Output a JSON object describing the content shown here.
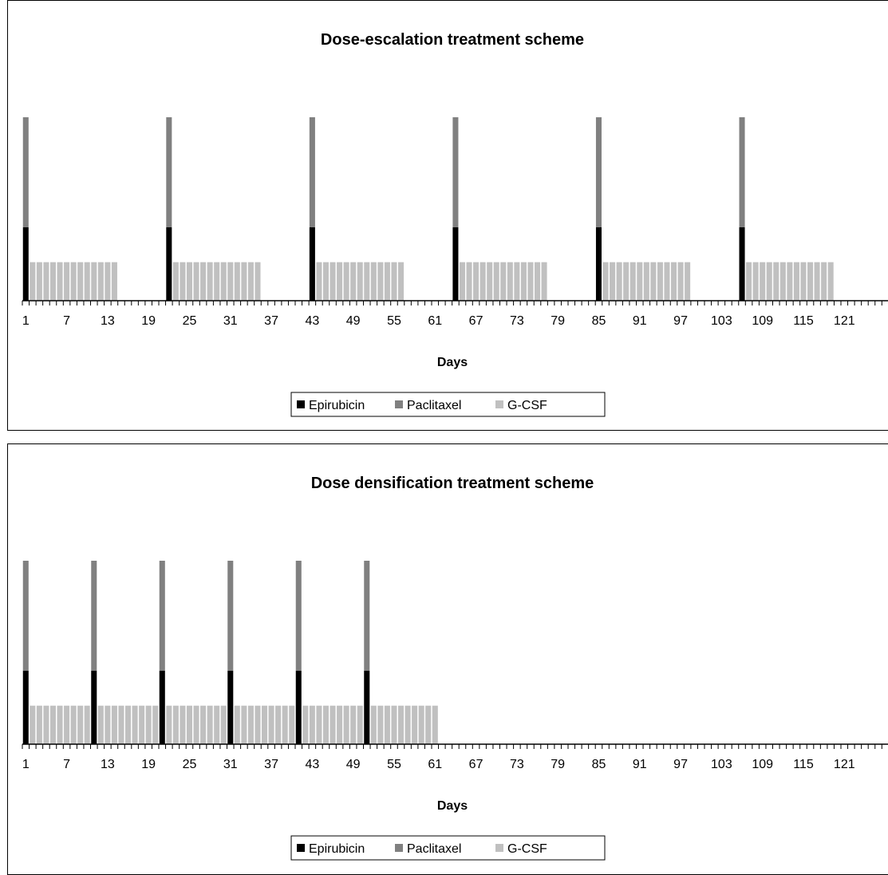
{
  "chart_data": [
    {
      "type": "bar",
      "subtype": "stacked",
      "title": "Dose-escalation treatment scheme",
      "xlabel": "Days",
      "ylabel": "",
      "x_range": [
        1,
        127
      ],
      "x_ticks": [
        1,
        7,
        13,
        19,
        25,
        31,
        37,
        43,
        49,
        55,
        61,
        67,
        73,
        79,
        85,
        91,
        97,
        103,
        109,
        115,
        121
      ],
      "ylim": [
        0,
        1
      ],
      "legend_position": "bottom",
      "series": [
        {
          "name": "Epirubicin",
          "color": "#000000",
          "days": [
            1,
            22,
            43,
            64,
            85,
            106
          ],
          "value": 0.4
        },
        {
          "name": "Paclitaxel",
          "color": "#808080",
          "days": [
            1,
            22,
            43,
            64,
            85,
            106
          ],
          "value": 0.6
        },
        {
          "name": "G-CSF",
          "color": "#c0c0c0",
          "days": [
            2,
            3,
            4,
            5,
            6,
            7,
            8,
            9,
            10,
            11,
            12,
            13,
            14,
            23,
            24,
            25,
            26,
            27,
            28,
            29,
            30,
            31,
            32,
            33,
            34,
            35,
            44,
            45,
            46,
            47,
            48,
            49,
            50,
            51,
            52,
            53,
            54,
            55,
            56,
            65,
            66,
            67,
            68,
            69,
            70,
            71,
            72,
            73,
            74,
            75,
            76,
            77,
            86,
            87,
            88,
            89,
            90,
            91,
            92,
            93,
            94,
            95,
            96,
            97,
            98,
            107,
            108,
            109,
            110,
            111,
            112,
            113,
            114,
            115,
            116,
            117,
            118,
            119
          ],
          "value": 0.21
        }
      ]
    },
    {
      "type": "bar",
      "subtype": "stacked",
      "title": "Dose densification treatment scheme",
      "xlabel": "Days",
      "ylabel": "",
      "x_range": [
        1,
        127
      ],
      "x_ticks": [
        1,
        7,
        13,
        19,
        25,
        31,
        37,
        43,
        49,
        55,
        61,
        67,
        73,
        79,
        85,
        91,
        97,
        103,
        109,
        115,
        121
      ],
      "ylim": [
        0,
        1
      ],
      "legend_position": "bottom",
      "series": [
        {
          "name": "Epirubicin",
          "color": "#000000",
          "days": [
            1,
            11,
            21,
            31,
            41,
            51
          ],
          "value": 0.4
        },
        {
          "name": "Paclitaxel",
          "color": "#808080",
          "days": [
            1,
            11,
            21,
            31,
            41,
            51
          ],
          "value": 0.6
        },
        {
          "name": "G-CSF",
          "color": "#c0c0c0",
          "days": [
            2,
            3,
            4,
            5,
            6,
            7,
            8,
            9,
            10,
            12,
            13,
            14,
            15,
            16,
            17,
            18,
            19,
            20,
            22,
            23,
            24,
            25,
            26,
            27,
            28,
            29,
            30,
            32,
            33,
            34,
            35,
            36,
            37,
            38,
            39,
            40,
            42,
            43,
            44,
            45,
            46,
            47,
            48,
            49,
            50,
            52,
            53,
            54,
            55,
            56,
            57,
            58,
            59,
            60,
            61
          ],
          "value": 0.21
        }
      ]
    }
  ]
}
